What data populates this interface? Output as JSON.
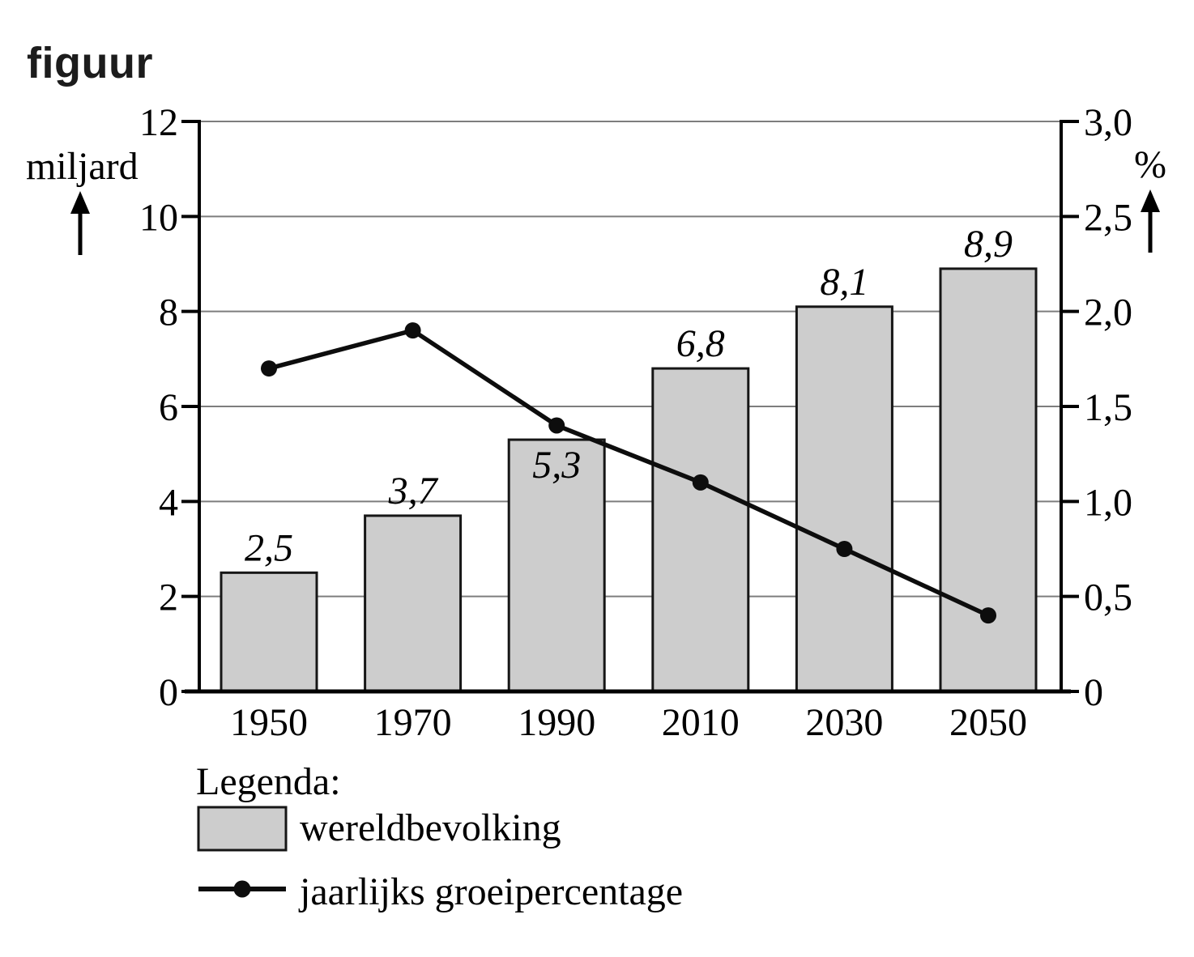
{
  "title": "figuur",
  "colors": {
    "bar_fill": "#cdcdcd",
    "bar_border": "#161616",
    "gridline": "#7d7d7d",
    "axis": "#000000",
    "line_series": "#0d0d0d"
  },
  "axes": {
    "left_title": "miljard",
    "right_title": "%",
    "left_tick_labels": [
      "0",
      "2",
      "4",
      "6",
      "8",
      "10",
      "12"
    ],
    "right_tick_labels": [
      "0",
      "0,5",
      "1,0",
      "1,5",
      "2,0",
      "2,5",
      "3,0"
    ],
    "x_tick_labels": [
      "1950",
      "1970",
      "1990",
      "2010",
      "2030",
      "2050"
    ]
  },
  "legend": {
    "heading": "Legenda:",
    "items": [
      {
        "swatch": "bar-swatch",
        "label": "wereldbevolking"
      },
      {
        "swatch": "line-swatch",
        "label": "jaarlijks groeipercentage"
      }
    ]
  },
  "chart_data": {
    "type": "bar+line",
    "categories": [
      "1950",
      "1970",
      "1990",
      "2010",
      "2030",
      "2050"
    ],
    "series": [
      {
        "name": "wereldbevolking",
        "type": "bar",
        "axis": "left",
        "unit": "miljard",
        "values": [
          2.5,
          3.7,
          5.3,
          6.8,
          8.1,
          8.9
        ],
        "value_labels": [
          "2,5",
          "3,7",
          "5,3",
          "6,8",
          "8,1",
          "8,9"
        ]
      },
      {
        "name": "jaarlijks groeipercentage",
        "type": "line",
        "axis": "right",
        "unit": "%",
        "values": [
          1.7,
          1.9,
          1.4,
          1.1,
          0.75,
          0.4
        ]
      }
    ],
    "left_axis": {
      "label": "miljard",
      "min": 0,
      "max": 12,
      "tick_step": 2
    },
    "right_axis": {
      "label": "%",
      "min": 0,
      "max": 3.0,
      "tick_step": 0.5
    },
    "grid": true,
    "legend_position": "bottom-left",
    "title": "figuur"
  }
}
